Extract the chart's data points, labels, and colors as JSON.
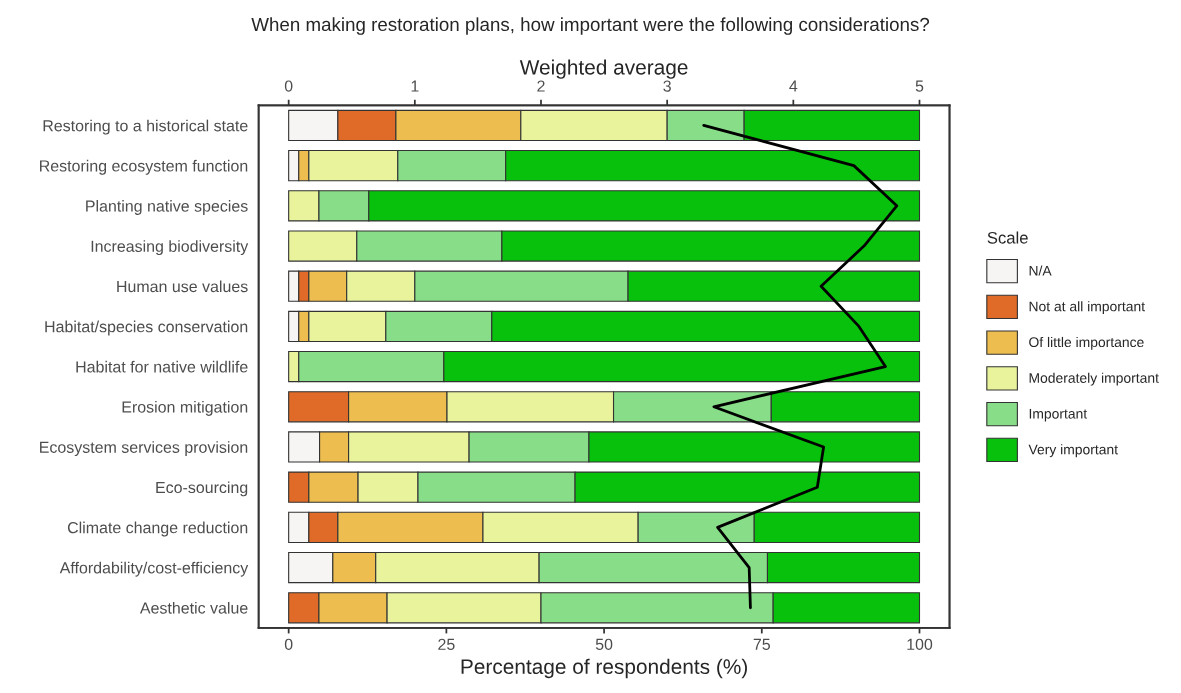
{
  "chart_data": {
    "type": "bar",
    "orientation": "horizontal",
    "stacked": true,
    "title": "When making restoration plans, how important were the following considerations?",
    "xlabel": "Percentage of respondents (%)",
    "x2label": "Weighted average",
    "legend_title": "Scale",
    "legend": "right",
    "grid": false,
    "categories": [
      "Restoring to a historical state",
      "Restoring ecosystem function",
      "Planting native species",
      "Increasing biodiversity",
      "Human use values",
      "Habitat/species conservation",
      "Habitat for native wildlife",
      "Erosion mitigation",
      "Ecosystem services provision",
      "Eco-sourcing",
      "Climate change reduction",
      "Affordability/cost-efficiency",
      "Aesthetic value"
    ],
    "xlim": [
      -4.76,
      104.76
    ],
    "xticks": [
      0,
      25,
      50,
      75,
      100
    ],
    "x2lim": [
      -0.238,
      5.238
    ],
    "x2ticks": [
      0,
      1,
      2,
      3,
      4,
      5
    ],
    "series": [
      {
        "name": "N/A",
        "color": "#f7f5f3",
        "values": [
          7.8,
          1.6,
          0,
          0,
          1.6,
          1.6,
          0,
          0,
          4.9,
          0,
          3.2,
          7.0,
          0
        ]
      },
      {
        "name": "Not at all important",
        "color": "#e06a28",
        "values": [
          9.2,
          0,
          0,
          0,
          1.6,
          0,
          0,
          9.5,
          0,
          3.2,
          4.6,
          0,
          4.8
        ]
      },
      {
        "name": "Of little importance",
        "color": "#eebd50",
        "values": [
          19.8,
          1.6,
          0,
          0,
          6.0,
          1.6,
          0,
          15.6,
          4.6,
          7.8,
          23.0,
          6.8,
          10.8
        ]
      },
      {
        "name": "Moderately important",
        "color": "#e9f39c",
        "values": [
          23.2,
          14.1,
          4.8,
          10.8,
          10.8,
          12.2,
          1.6,
          26.4,
          19.1,
          9.5,
          24.6,
          25.9,
          24.4
        ]
      },
      {
        "name": "Important",
        "color": "#88dd88",
        "values": [
          12.2,
          17.1,
          7.9,
          23.0,
          33.8,
          16.8,
          23.0,
          25.0,
          19.0,
          24.9,
          18.4,
          36.2,
          36.8
        ]
      },
      {
        "name": "Very important",
        "color": "#08c10d",
        "values": [
          27.8,
          65.6,
          87.3,
          66.2,
          46.2,
          67.8,
          75.4,
          23.5,
          52.4,
          54.6,
          26.2,
          24.1,
          23.2
        ]
      },
      {
        "type": "line",
        "axis": "x2",
        "color": "#000000",
        "values": [
          3.29,
          4.48,
          4.82,
          4.56,
          4.22,
          4.52,
          4.73,
          3.37,
          4.24,
          4.19,
          3.4,
          3.65,
          3.66
        ]
      }
    ]
  }
}
